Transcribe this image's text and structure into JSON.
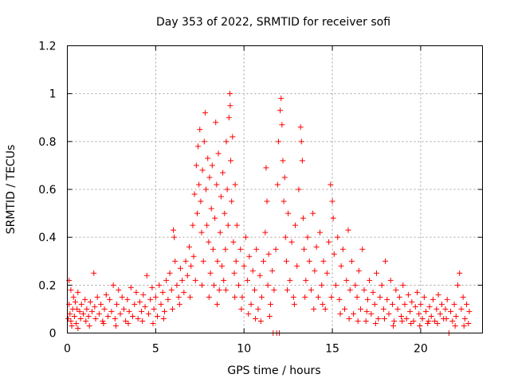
{
  "chart_data": {
    "type": "scatter",
    "title": "Day 353 of 2022, SRMTID for receiver sofi",
    "xlabel": "GPS time / hours",
    "ylabel": "SRMTID / TECUs",
    "xlim": [
      0,
      23.5
    ],
    "ylim": [
      0,
      1.2
    ],
    "xticks": [
      0,
      5,
      10,
      15,
      20
    ],
    "xtick_labels": [
      "0",
      "5",
      "10",
      "15",
      "20"
    ],
    "yticks": [
      0,
      0.2,
      0.4,
      0.6,
      0.8,
      1,
      1.2
    ],
    "ytick_labels": [
      "0",
      "0.2",
      "0.4",
      "0.6",
      "0.8",
      "1",
      "1.2"
    ],
    "grid": true,
    "marker": "+",
    "color": "#ff0000",
    "series": [
      {
        "name": "SRMTID",
        "points": [
          [
            0.1,
            0.22
          ],
          [
            0.1,
            0.12
          ],
          [
            0.15,
            0.08
          ],
          [
            0.2,
            0.05
          ],
          [
            0.2,
            0.18
          ],
          [
            0.3,
            0.1
          ],
          [
            0.35,
            0.15
          ],
          [
            0.4,
            0.07
          ],
          [
            0.45,
            0.13
          ],
          [
            0.5,
            0.04
          ],
          [
            0.55,
            0.1
          ],
          [
            0.6,
            0.17
          ],
          [
            0.7,
            0.09
          ],
          [
            0.75,
            0.06
          ],
          [
            0.8,
            0.12
          ],
          [
            0.9,
            0.08
          ],
          [
            1.0,
            0.14
          ],
          [
            1.05,
            0.05
          ],
          [
            1.1,
            0.1
          ],
          [
            1.2,
            0.07
          ],
          [
            1.3,
            0.13
          ],
          [
            1.4,
            0.09
          ],
          [
            1.5,
            0.25
          ],
          [
            1.55,
            0.11
          ],
          [
            1.6,
            0.06
          ],
          [
            1.7,
            0.15
          ],
          [
            1.8,
            0.08
          ],
          [
            1.9,
            0.12
          ],
          [
            2.0,
            0.05
          ],
          [
            2.1,
            0.1
          ],
          [
            2.2,
            0.16
          ],
          [
            2.3,
            0.07
          ],
          [
            2.4,
            0.14
          ],
          [
            2.5,
            0.09
          ],
          [
            2.6,
            0.2
          ],
          [
            2.7,
            0.06
          ],
          [
            2.8,
            0.12
          ],
          [
            2.9,
            0.18
          ],
          [
            3.0,
            0.08
          ],
          [
            3.1,
            0.15
          ],
          [
            3.2,
            0.1
          ],
          [
            3.3,
            0.05
          ],
          [
            3.4,
            0.14
          ],
          [
            3.5,
            0.09
          ],
          [
            3.6,
            0.19
          ],
          [
            3.7,
            0.07
          ],
          [
            3.8,
            0.12
          ],
          [
            3.9,
            0.17
          ],
          [
            4.0,
            0.06
          ],
          [
            4.1,
            0.13
          ],
          [
            4.2,
            0.09
          ],
          [
            4.3,
            0.16
          ],
          [
            4.4,
            0.11
          ],
          [
            4.5,
            0.24
          ],
          [
            4.6,
            0.08
          ],
          [
            4.7,
            0.14
          ],
          [
            4.8,
            0.19
          ],
          [
            4.9,
            0.1
          ],
          [
            5.0,
            0.15
          ],
          [
            5.1,
            0.07
          ],
          [
            5.2,
            0.2
          ],
          [
            5.3,
            0.12
          ],
          [
            5.4,
            0.17
          ],
          [
            5.5,
            0.09
          ],
          [
            5.6,
            0.22
          ],
          [
            5.7,
            0.14
          ],
          [
            5.8,
            0.25
          ],
          [
            5.9,
            0.18
          ],
          [
            6.0,
            0.43
          ],
          [
            6.05,
            0.4
          ],
          [
            6.1,
            0.3
          ],
          [
            6.2,
            0.2
          ],
          [
            6.3,
            0.15
          ],
          [
            6.4,
            0.27
          ],
          [
            6.5,
            0.22
          ],
          [
            6.6,
            0.17
          ],
          [
            6.7,
            0.3
          ],
          [
            6.8,
            0.24
          ],
          [
            6.9,
            0.36
          ],
          [
            7.0,
            0.28
          ],
          [
            7.1,
            0.45
          ],
          [
            7.15,
            0.32
          ],
          [
            7.2,
            0.58
          ],
          [
            7.3,
            0.7
          ],
          [
            7.35,
            0.5
          ],
          [
            7.4,
            0.78
          ],
          [
            7.45,
            0.62
          ],
          [
            7.5,
            0.85
          ],
          [
            7.55,
            0.55
          ],
          [
            7.6,
            0.42
          ],
          [
            7.65,
            0.68
          ],
          [
            7.7,
            0.3
          ],
          [
            7.75,
            0.8
          ],
          [
            7.8,
            0.92
          ],
          [
            7.85,
            0.6
          ],
          [
            7.9,
            0.45
          ],
          [
            7.95,
            0.73
          ],
          [
            8.0,
            0.38
          ],
          [
            8.05,
            0.65
          ],
          [
            8.1,
            0.25
          ],
          [
            8.15,
            0.52
          ],
          [
            8.2,
            0.7
          ],
          [
            8.25,
            0.35
          ],
          [
            8.3,
            0.2
          ],
          [
            8.35,
            0.48
          ],
          [
            8.4,
            0.88
          ],
          [
            8.45,
            0.62
          ],
          [
            8.5,
            0.3
          ],
          [
            8.55,
            0.75
          ],
          [
            8.6,
            0.18
          ],
          [
            8.65,
            0.42
          ],
          [
            8.7,
            0.57
          ],
          [
            8.75,
            0.28
          ],
          [
            8.8,
            0.67
          ],
          [
            8.85,
            0.22
          ],
          [
            8.9,
            0.5
          ],
          [
            8.95,
            0.35
          ],
          [
            9.0,
            0.8
          ],
          [
            9.05,
            0.6
          ],
          [
            9.1,
            0.45
          ],
          [
            9.15,
            0.9
          ],
          [
            9.2,
            1.0
          ],
          [
            9.22,
            0.95
          ],
          [
            9.25,
            0.72
          ],
          [
            9.3,
            0.55
          ],
          [
            9.35,
            0.82
          ],
          [
            9.4,
            0.38
          ],
          [
            9.45,
            0.25
          ],
          [
            9.5,
            0.62
          ],
          [
            9.55,
            0.3
          ],
          [
            9.6,
            0.45
          ],
          [
            9.7,
            0.2
          ],
          [
            9.8,
            0.35
          ],
          [
            9.9,
            0.15
          ],
          [
            10.0,
            0.28
          ],
          [
            10.1,
            0.4
          ],
          [
            10.2,
            0.22
          ],
          [
            10.3,
            0.32
          ],
          [
            10.4,
            0.12
          ],
          [
            10.5,
            0.26
          ],
          [
            10.6,
            0.18
          ],
          [
            10.7,
            0.35
          ],
          [
            10.8,
            0.1
          ],
          [
            10.9,
            0.24
          ],
          [
            11.0,
            0.15
          ],
          [
            11.1,
            0.3
          ],
          [
            11.2,
            0.42
          ],
          [
            11.25,
            0.69
          ],
          [
            11.3,
            0.55
          ],
          [
            11.35,
            0.2
          ],
          [
            11.4,
            0.33
          ],
          [
            11.5,
            0.12
          ],
          [
            11.6,
            0.26
          ],
          [
            11.65,
            0.0
          ],
          [
            11.7,
            0.18
          ],
          [
            11.8,
            0.35
          ],
          [
            11.85,
            0.0
          ],
          [
            11.9,
            0.62
          ],
          [
            11.95,
            0.8
          ],
          [
            12.0,
            0.0
          ],
          [
            12.05,
            0.93
          ],
          [
            12.1,
            0.98
          ],
          [
            12.15,
            0.87
          ],
          [
            12.2,
            0.72
          ],
          [
            12.25,
            0.55
          ],
          [
            12.3,
            0.65
          ],
          [
            12.35,
            0.4
          ],
          [
            12.4,
            0.3
          ],
          [
            12.5,
            0.5
          ],
          [
            12.6,
            0.22
          ],
          [
            12.7,
            0.38
          ],
          [
            12.8,
            0.15
          ],
          [
            12.9,
            0.45
          ],
          [
            13.0,
            0.28
          ],
          [
            13.1,
            0.6
          ],
          [
            13.2,
            0.86
          ],
          [
            13.25,
            0.8
          ],
          [
            13.3,
            0.72
          ],
          [
            13.35,
            0.48
          ],
          [
            13.4,
            0.35
          ],
          [
            13.5,
            0.22
          ],
          [
            13.6,
            0.4
          ],
          [
            13.7,
            0.3
          ],
          [
            13.8,
            0.18
          ],
          [
            13.9,
            0.5
          ],
          [
            14.0,
            0.26
          ],
          [
            14.1,
            0.36
          ],
          [
            14.2,
            0.15
          ],
          [
            14.3,
            0.42
          ],
          [
            14.4,
            0.2
          ],
          [
            14.5,
            0.3
          ],
          [
            14.6,
            0.1
          ],
          [
            14.7,
            0.25
          ],
          [
            14.8,
            0.38
          ],
          [
            14.9,
            0.62
          ],
          [
            15.0,
            0.55
          ],
          [
            15.05,
            0.48
          ],
          [
            15.1,
            0.33
          ],
          [
            15.2,
            0.2
          ],
          [
            15.3,
            0.4
          ],
          [
            15.4,
            0.14
          ],
          [
            15.5,
            0.28
          ],
          [
            15.6,
            0.35
          ],
          [
            15.7,
            0.1
          ],
          [
            15.8,
            0.22
          ],
          [
            15.9,
            0.43
          ],
          [
            16.0,
            0.18
          ],
          [
            16.1,
            0.3
          ],
          [
            16.2,
            0.08
          ],
          [
            16.3,
            0.2
          ],
          [
            16.4,
            0.15
          ],
          [
            16.5,
            0.26
          ],
          [
            16.6,
            0.1
          ],
          [
            16.7,
            0.35
          ],
          [
            16.8,
            0.18
          ],
          [
            16.9,
            0.05
          ],
          [
            17.0,
            0.14
          ],
          [
            17.1,
            0.22
          ],
          [
            17.2,
            0.08
          ],
          [
            17.3,
            0.17
          ],
          [
            17.4,
            0.12
          ],
          [
            17.5,
            0.25
          ],
          [
            17.6,
            0.06
          ],
          [
            17.7,
            0.15
          ],
          [
            17.8,
            0.2
          ],
          [
            17.9,
            0.1
          ],
          [
            18.0,
            0.3
          ],
          [
            18.1,
            0.14
          ],
          [
            18.2,
            0.08
          ],
          [
            18.3,
            0.22
          ],
          [
            18.4,
            0.12
          ],
          [
            18.5,
            0.05
          ],
          [
            18.6,
            0.18
          ],
          [
            18.7,
            0.1
          ],
          [
            18.8,
            0.15
          ],
          [
            18.9,
            0.07
          ],
          [
            19.0,
            0.2
          ],
          [
            19.1,
            0.12
          ],
          [
            19.2,
            0.06
          ],
          [
            19.3,
            0.16
          ],
          [
            19.4,
            0.09
          ],
          [
            19.5,
            0.13
          ],
          [
            19.6,
            0.05
          ],
          [
            19.7,
            0.11
          ],
          [
            19.8,
            0.17
          ],
          [
            19.9,
            0.08
          ],
          [
            20.0,
            0.12
          ],
          [
            20.1,
            0.06
          ],
          [
            20.2,
            0.15
          ],
          [
            20.3,
            0.09
          ],
          [
            20.4,
            0.04
          ],
          [
            20.5,
            0.11
          ],
          [
            20.6,
            0.07
          ],
          [
            20.7,
            0.14
          ],
          [
            20.8,
            0.05
          ],
          [
            20.9,
            0.1
          ],
          [
            21.0,
            0.16
          ],
          [
            21.1,
            0.08
          ],
          [
            21.2,
            0.12
          ],
          [
            21.3,
            0.06
          ],
          [
            21.4,
            0.1
          ],
          [
            21.5,
            0.14
          ],
          [
            21.6,
            0.0
          ],
          [
            21.7,
            0.09
          ],
          [
            21.8,
            0.05
          ],
          [
            21.9,
            0.12
          ],
          [
            22.0,
            0.07
          ],
          [
            22.1,
            0.2
          ],
          [
            22.2,
            0.25
          ],
          [
            22.3,
            0.1
          ],
          [
            22.4,
            0.15
          ],
          [
            22.5,
            0.06
          ],
          [
            22.6,
            0.12
          ],
          [
            22.7,
            0.04
          ],
          [
            22.75,
            0.09
          ],
          [
            0.05,
            0.06
          ],
          [
            0.25,
            0.03
          ],
          [
            0.6,
            0.02
          ],
          [
            1.25,
            0.03
          ],
          [
            2.05,
            0.04
          ],
          [
            2.75,
            0.03
          ],
          [
            3.45,
            0.04
          ],
          [
            4.25,
            0.05
          ],
          [
            4.85,
            0.04
          ],
          [
            5.45,
            0.06
          ],
          [
            5.95,
            0.1
          ],
          [
            6.35,
            0.12
          ],
          [
            6.95,
            0.15
          ],
          [
            7.25,
            0.22
          ],
          [
            7.62,
            0.2
          ],
          [
            8.02,
            0.15
          ],
          [
            8.48,
            0.12
          ],
          [
            8.98,
            0.18
          ],
          [
            9.48,
            0.15
          ],
          [
            9.85,
            0.1
          ],
          [
            10.25,
            0.08
          ],
          [
            10.65,
            0.06
          ],
          [
            10.95,
            0.05
          ],
          [
            11.45,
            0.07
          ],
          [
            12.45,
            0.18
          ],
          [
            12.85,
            0.12
          ],
          [
            13.45,
            0.15
          ],
          [
            13.95,
            0.1
          ],
          [
            14.45,
            0.12
          ],
          [
            14.95,
            0.15
          ],
          [
            15.45,
            0.08
          ],
          [
            15.95,
            0.06
          ],
          [
            16.45,
            0.05
          ],
          [
            16.95,
            0.09
          ],
          [
            17.45,
            0.04
          ],
          [
            17.95,
            0.06
          ],
          [
            18.45,
            0.03
          ],
          [
            18.95,
            0.05
          ],
          [
            19.45,
            0.04
          ],
          [
            19.95,
            0.03
          ],
          [
            20.45,
            0.05
          ],
          [
            20.95,
            0.04
          ],
          [
            21.45,
            0.06
          ],
          [
            21.95,
            0.03
          ],
          [
            22.45,
            0.03
          ]
        ]
      }
    ]
  }
}
